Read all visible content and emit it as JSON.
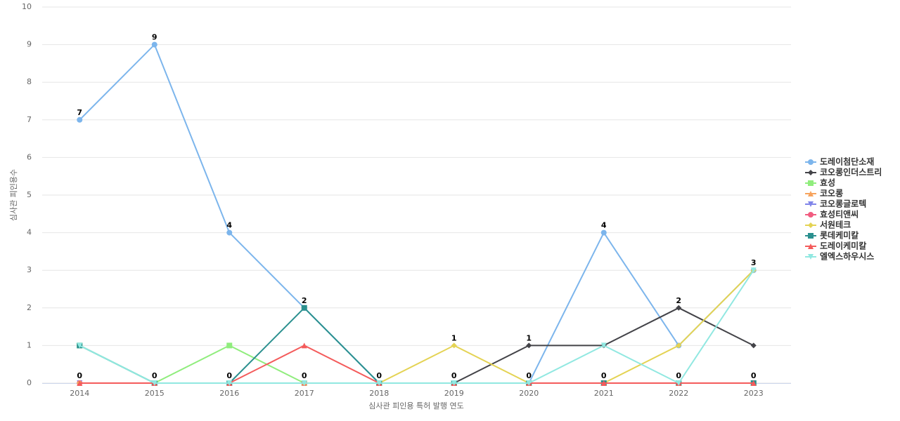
{
  "chart_data": {
    "type": "line",
    "x_label": "심사관 피인용 특허 발행 연도",
    "y_label": "심사관 피인용수",
    "categories": [
      "2014",
      "2015",
      "2016",
      "2017",
      "2018",
      "2019",
      "2020",
      "2021",
      "2022",
      "2023"
    ],
    "ylim": [
      0,
      10
    ],
    "yticks": [
      0,
      1,
      2,
      3,
      4,
      5,
      6,
      7,
      8,
      9,
      10
    ],
    "grid": true,
    "legend": "right",
    "series": [
      {
        "name": "도레이첨단소재",
        "color": "#7cb5ec",
        "values": [
          7,
          9,
          4,
          2,
          0,
          0,
          0,
          4,
          1,
          3
        ]
      },
      {
        "name": "코오롱인더스트리",
        "color": "#434348",
        "values": [
          0,
          0,
          0,
          0,
          0,
          0,
          1,
          1,
          2,
          1
        ]
      },
      {
        "name": "효성",
        "color": "#90ed7d",
        "values": [
          1,
          0,
          1,
          0,
          0,
          0,
          0,
          0,
          0,
          0
        ]
      },
      {
        "name": "코오롱",
        "color": "#f7a35c",
        "values": [
          0,
          0,
          0,
          0,
          0,
          0,
          0,
          0,
          0,
          0
        ]
      },
      {
        "name": "코오롱글로텍",
        "color": "#8085e9",
        "values": [
          0,
          0,
          0,
          0,
          0,
          0,
          0,
          0,
          0,
          0
        ]
      },
      {
        "name": "효성티앤씨",
        "color": "#f15c80",
        "values": [
          0,
          0,
          0,
          0,
          0,
          0,
          0,
          0,
          0,
          0
        ]
      },
      {
        "name": "서원테크",
        "color": "#e4d354",
        "values": [
          0,
          0,
          0,
          0,
          0,
          1,
          0,
          0,
          1,
          3
        ]
      },
      {
        "name": "롯데케미칼",
        "color": "#2b908f",
        "values": [
          1,
          0,
          0,
          2,
          0,
          0,
          0,
          0,
          0,
          0
        ]
      },
      {
        "name": "도레이케미칼",
        "color": "#f45b5b",
        "values": [
          0,
          0,
          0,
          1,
          0,
          0,
          0,
          0,
          0,
          0
        ]
      },
      {
        "name": "엘엑스하우시스",
        "color": "#91e8e1",
        "values": [
          1,
          0,
          0,
          0,
          0,
          0,
          0,
          1,
          0,
          3
        ]
      }
    ]
  }
}
